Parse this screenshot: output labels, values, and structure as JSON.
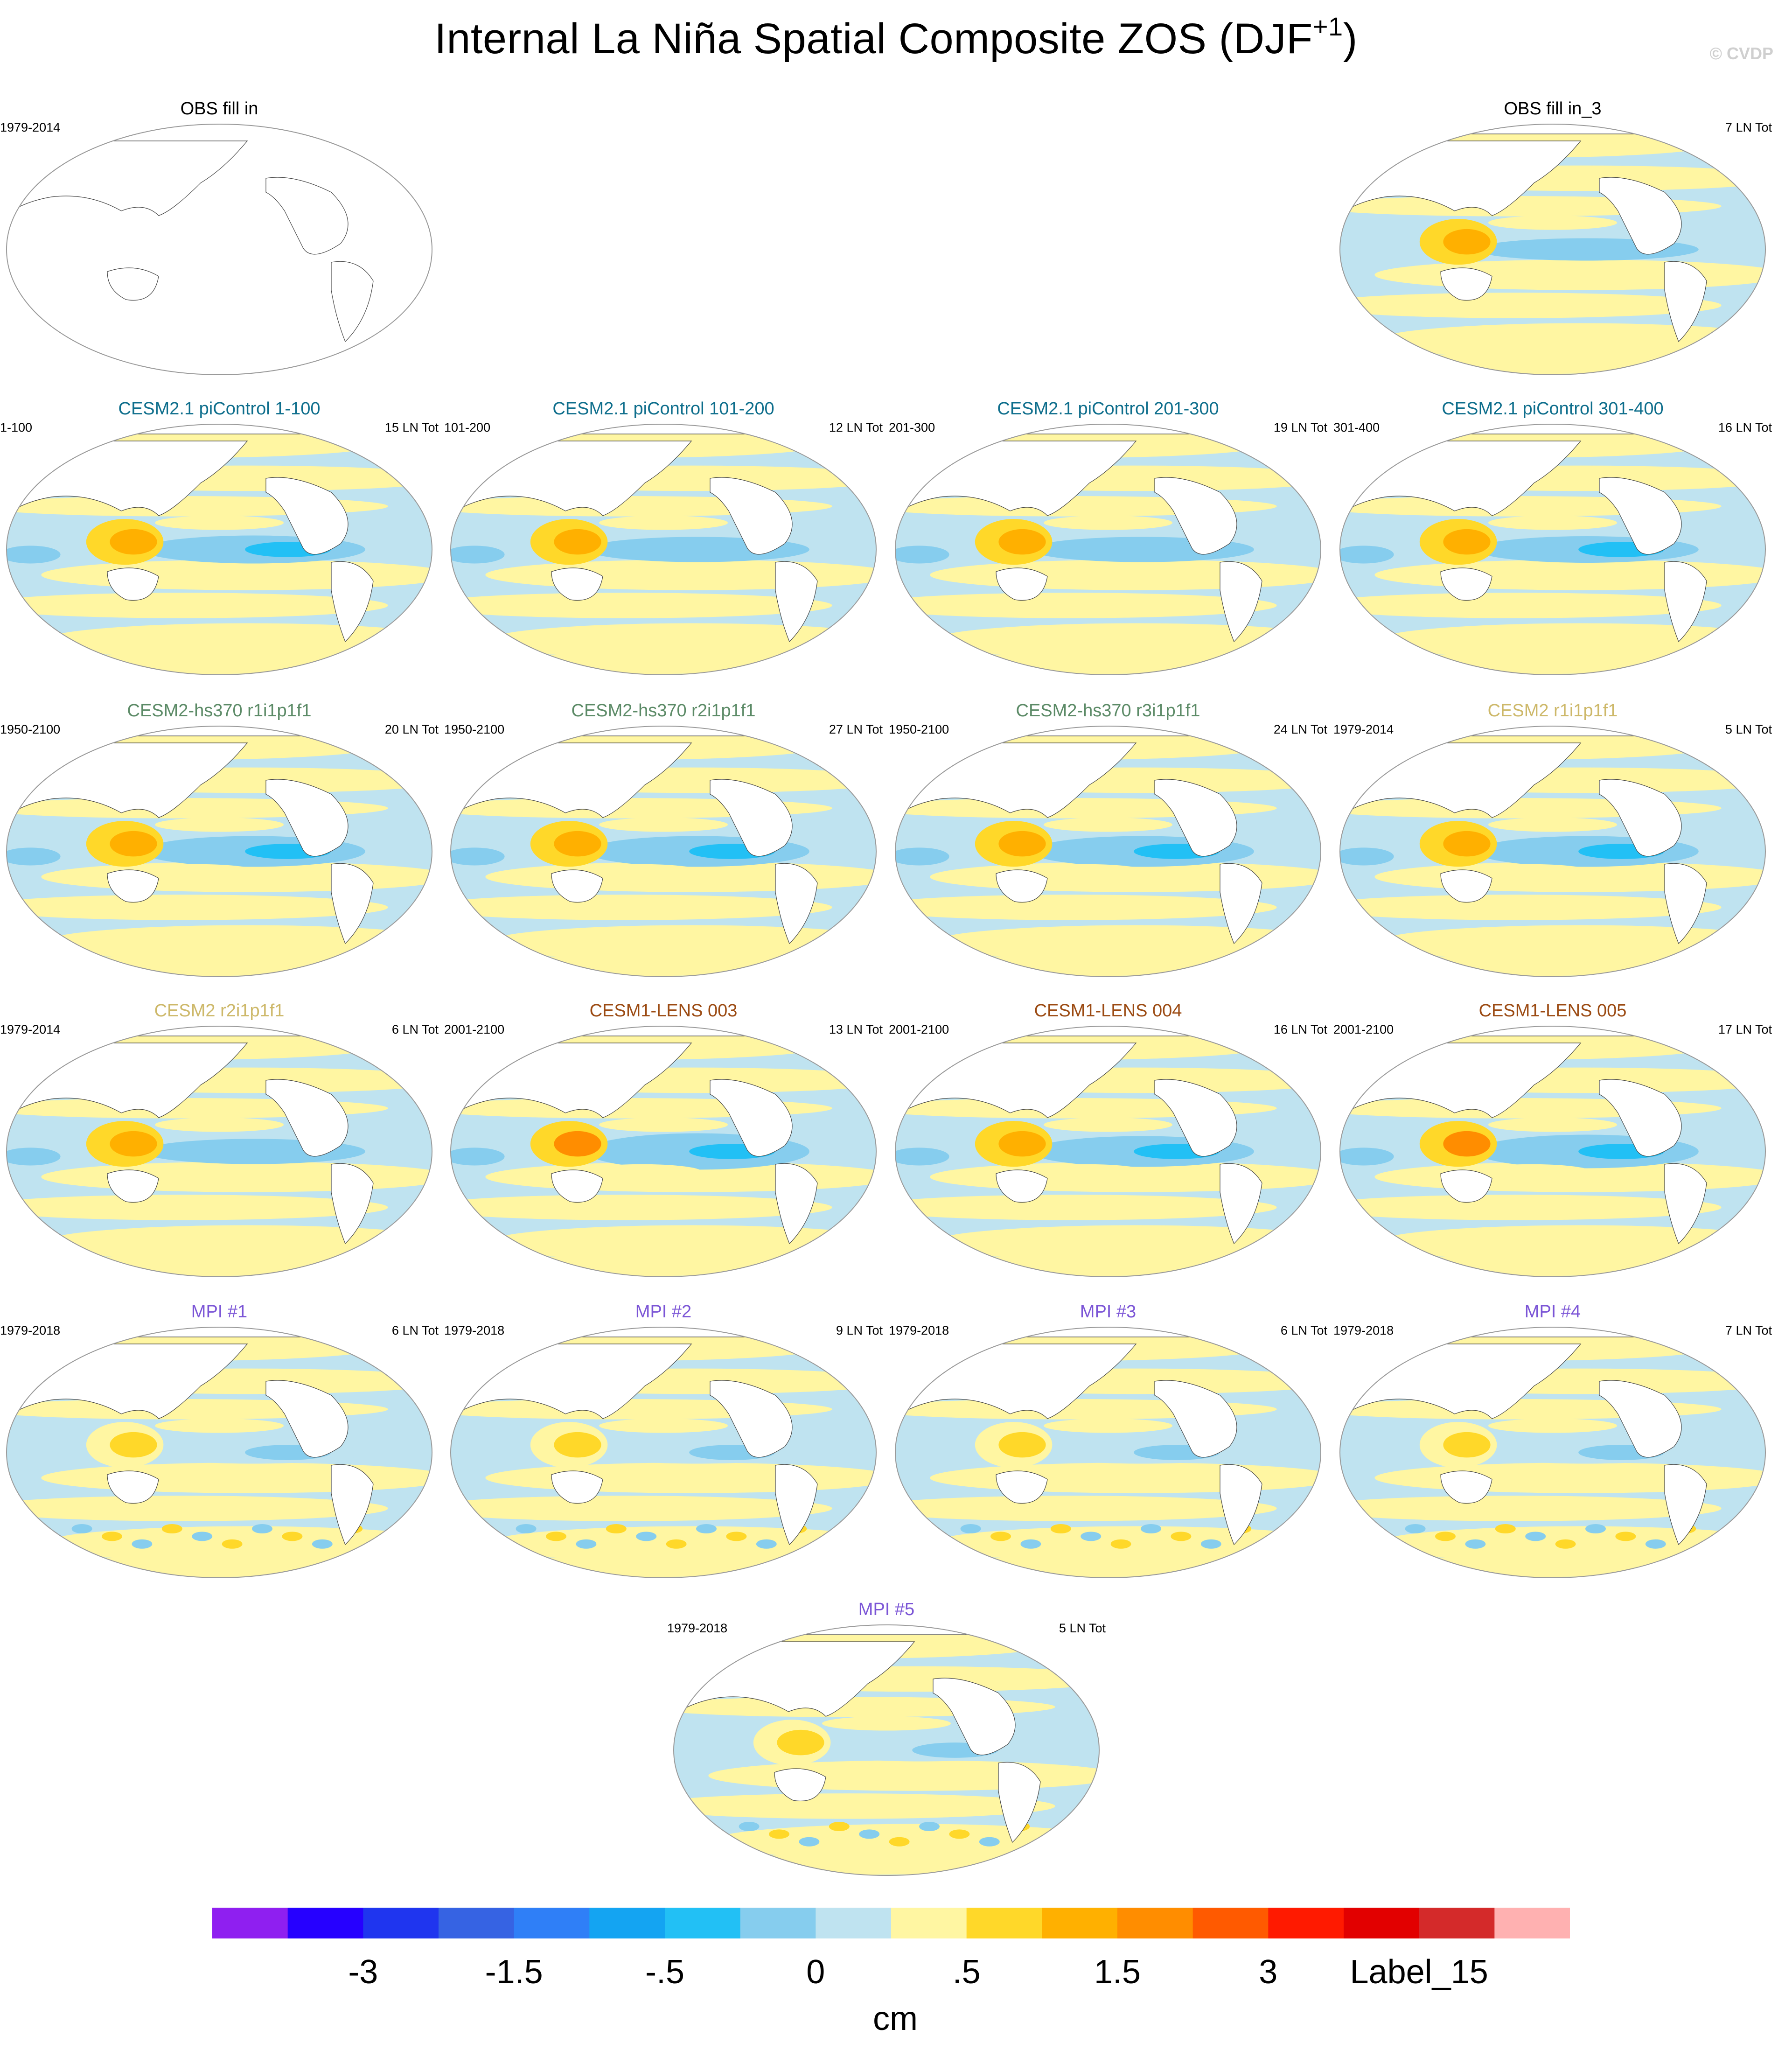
{
  "title_main": "Internal La Niña Spatial Composite ZOS (DJF",
  "title_sup": "+1",
  "title_close": ")",
  "watermark": "© CVDP",
  "colors": {
    "land": "#ffffff",
    "ocean_border": "#555555",
    "blue_group": "#0e6e8c",
    "green_group": "#5b8a66",
    "tan_group": "#cdb869",
    "brown_group": "#9b4a12",
    "purple_group": "#7b55d6",
    "black_group": "#000000"
  },
  "chart_data": {
    "type": "heatmap",
    "variable": "ZOS",
    "units_label": "cm",
    "colorbar": {
      "colors": [
        "#8f1ff0",
        "#2600ff",
        "#1f35ef",
        "#3663e3",
        "#2f7ff7",
        "#14a4f2",
        "#22c0f5",
        "#86cdee",
        "#bfe3f0",
        "#fff6a2",
        "#ffd829",
        "#ffb000",
        "#ff8d00",
        "#ff5a00",
        "#ff1a00",
        "#e20000",
        "#d42a2a",
        "#ffb1b1"
      ],
      "tick_labels": [
        "-3",
        "-1.5",
        "-.5",
        "0",
        ".5",
        "1.5",
        "3",
        "Label_15"
      ],
      "tick_label_values": [
        -3,
        -1.5,
        -0.5,
        0,
        0.5,
        1.5,
        3,
        null
      ]
    },
    "panels": [
      {
        "title": "OBS fill in",
        "period": "1979-2014",
        "count": "",
        "color": "black_group",
        "filled": false
      },
      {
        "title": "OBS fill in_3",
        "period": "",
        "count": "7 LN Tot",
        "color": "black_group",
        "filled": true,
        "intensity": 0.8
      },
      {
        "title": "CESM2.1 piControl 1-100",
        "period": "1-100",
        "count": "15 LN Tot",
        "color": "blue_group",
        "filled": true,
        "intensity": 1.0
      },
      {
        "title": "CESM2.1 piControl 101-200",
        "period": "101-200",
        "count": "12 LN Tot",
        "color": "blue_group",
        "filled": true,
        "intensity": 0.9
      },
      {
        "title": "CESM2.1 piControl 201-300",
        "period": "201-300",
        "count": "19 LN Tot",
        "color": "blue_group",
        "filled": true,
        "intensity": 0.9
      },
      {
        "title": "CESM2.1 piControl 301-400",
        "period": "301-400",
        "count": "16 LN Tot",
        "color": "blue_group",
        "filled": true,
        "intensity": 0.95
      },
      {
        "title": "CESM2-hs370 r1i1p1f1",
        "period": "1950-2100",
        "count": "20 LN Tot",
        "color": "green_group",
        "filled": true,
        "intensity": 1.1
      },
      {
        "title": "CESM2-hs370 r2i1p1f1",
        "period": "1950-2100",
        "count": "27 LN Tot",
        "color": "green_group",
        "filled": true,
        "intensity": 1.1
      },
      {
        "title": "CESM2-hs370 r3i1p1f1",
        "period": "1950-2100",
        "count": "24 LN Tot",
        "color": "green_group",
        "filled": true,
        "intensity": 1.1
      },
      {
        "title": "CESM2 r1i1p1f1",
        "period": "1979-2014",
        "count": "5 LN Tot",
        "color": "tan_group",
        "filled": true,
        "intensity": 1.1
      },
      {
        "title": "CESM2 r2i1p1f1",
        "period": "1979-2014",
        "count": "6 LN Tot",
        "color": "tan_group",
        "filled": true,
        "intensity": 0.9
      },
      {
        "title": "CESM1-LENS 003",
        "period": "2001-2100",
        "count": "13 LN Tot",
        "color": "brown_group",
        "filled": true,
        "intensity": 1.3
      },
      {
        "title": "CESM1-LENS 004",
        "period": "2001-2100",
        "count": "16 LN Tot",
        "color": "brown_group",
        "filled": true,
        "intensity": 1.1
      },
      {
        "title": "CESM1-LENS 005",
        "period": "2001-2100",
        "count": "17 LN Tot",
        "color": "brown_group",
        "filled": true,
        "intensity": 1.2
      },
      {
        "title": "MPI #1",
        "period": "1979-2018",
        "count": "6 LN Tot",
        "color": "purple_group",
        "filled": true,
        "intensity": 0.6
      },
      {
        "title": "MPI #2",
        "period": "1979-2018",
        "count": "9 LN Tot",
        "color": "purple_group",
        "filled": true,
        "intensity": 0.6
      },
      {
        "title": "MPI #3",
        "period": "1979-2018",
        "count": "6 LN Tot",
        "color": "purple_group",
        "filled": true,
        "intensity": 0.6
      },
      {
        "title": "MPI #4",
        "period": "1979-2018",
        "count": "7 LN Tot",
        "color": "purple_group",
        "filled": true,
        "intensity": 0.6
      },
      {
        "title": "MPI #5",
        "period": "1979-2018",
        "count": "5 LN Tot",
        "color": "purple_group",
        "filled": true,
        "intensity": 0.6
      }
    ]
  }
}
